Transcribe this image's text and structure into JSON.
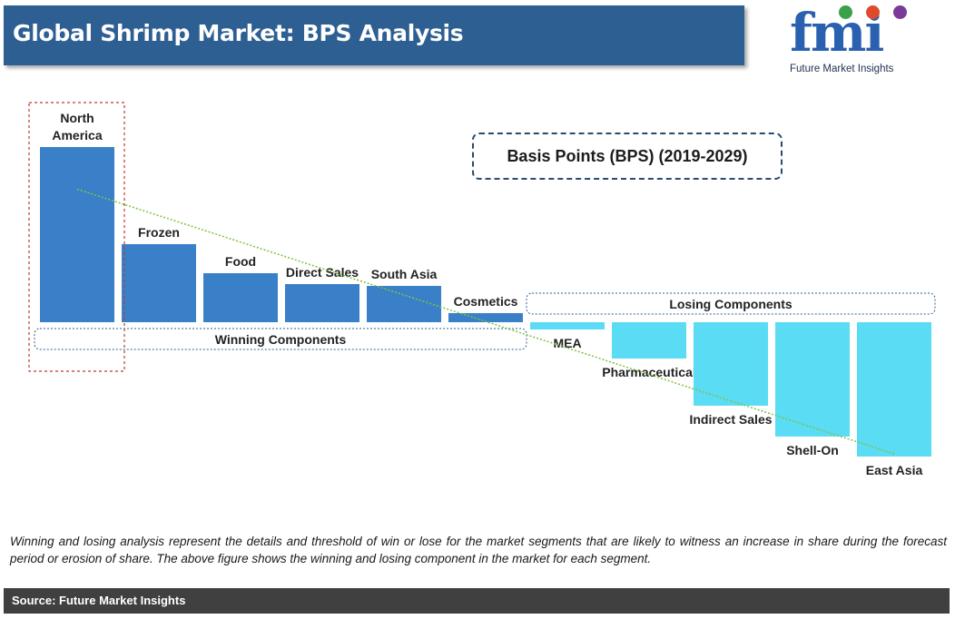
{
  "header": {
    "title": "Global Shrimp Market: BPS Analysis"
  },
  "logo": {
    "text": "fmi",
    "subtitle": "Future Market Insights",
    "dots": [
      "#3aa04a",
      "#e04a2a",
      "#7a3a9a"
    ]
  },
  "legend_box": {
    "text": "Basis Points (BPS) (2019-2029)"
  },
  "footer": {
    "note": "Winning and losing analysis represent the details and threshold of win or lose for the market segments that are likely to witness an increase in share during the forecast period or erosion of share. The above figure shows the winning and losing component in the market for each segment.",
    "source": "Source: Future Market Insights"
  },
  "colors": {
    "winning": "#3a80c8",
    "losing": "#5adcf4",
    "trend": "#7fc241",
    "title_bar": "#2e5f92"
  },
  "chart_data": {
    "type": "bar",
    "title": "Basis Points (BPS) (2019-2029)",
    "categories": [
      "North America",
      "Frozen",
      "Food",
      "Direct Sales",
      "South Asia",
      "Cosmetics",
      "MEA",
      "Pharmaceutical",
      "Indirect Sales",
      "Shell-On",
      "East Asia"
    ],
    "values": [
      193,
      86,
      54,
      42,
      40,
      10,
      -8,
      -40,
      -92,
      -126,
      -148
    ],
    "groups": [
      {
        "label": "Winning Components",
        "categories": [
          "North America",
          "Frozen",
          "Food",
          "Direct Sales",
          "South Asia",
          "Cosmetics"
        ]
      },
      {
        "label": "Losing Components",
        "categories": [
          "MEA",
          "Pharmaceutical",
          "Indirect Sales",
          "Shell-On",
          "East Asia"
        ]
      }
    ],
    "highlight": "North America",
    "trendline": true,
    "xlabel": "",
    "ylabel": ""
  }
}
